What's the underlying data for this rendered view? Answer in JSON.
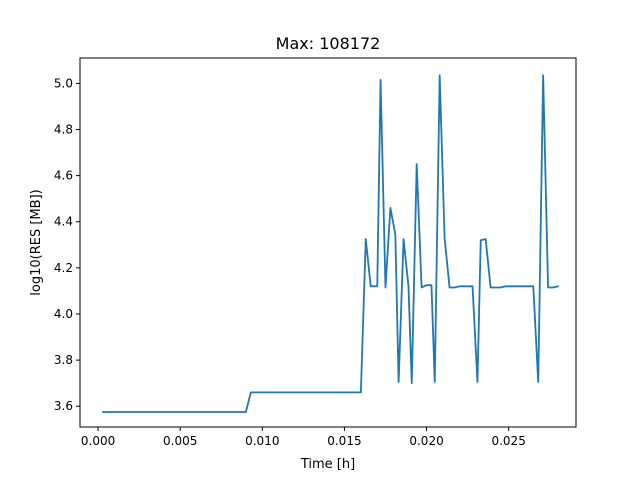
{
  "chart_data": {
    "type": "line",
    "title": "Max: 108172",
    "xlabel": "Time [h]",
    "ylabel": "log10(RES [MB])",
    "xlim": [
      -0.0011,
      0.0291
    ],
    "ylim": [
      3.51,
      5.11
    ],
    "x_ticks": [
      0.0,
      0.005,
      0.01,
      0.015,
      0.02,
      0.025
    ],
    "x_tick_labels": [
      "0.000",
      "0.005",
      "0.010",
      "0.015",
      "0.020",
      "0.025"
    ],
    "y_ticks": [
      3.6,
      3.8,
      4.0,
      4.2,
      4.4,
      4.6,
      4.8,
      5.0
    ],
    "y_tick_labels": [
      "3.6",
      "3.8",
      "4.0",
      "4.2",
      "4.4",
      "4.6",
      "4.8",
      "5.0"
    ],
    "grid": false,
    "legend": "none",
    "series": [
      {
        "color": "#1f77b4",
        "x": [
          0.0003,
          0.009,
          0.0093,
          0.012,
          0.016,
          0.0163,
          0.0166,
          0.017,
          0.0172,
          0.0175,
          0.0178,
          0.0181,
          0.0183,
          0.0186,
          0.0189,
          0.0191,
          0.0194,
          0.0197,
          0.02,
          0.0203,
          0.0205,
          0.0208,
          0.0211,
          0.0214,
          0.0217,
          0.022,
          0.0222,
          0.0225,
          0.0228,
          0.0231,
          0.0233,
          0.0236,
          0.0239,
          0.0242,
          0.0245,
          0.0248,
          0.025,
          0.0253,
          0.0256,
          0.0259,
          0.0262,
          0.0265,
          0.0268,
          0.0271,
          0.0274,
          0.0277,
          0.028
        ],
        "y": [
          3.575,
          3.575,
          3.66,
          3.66,
          3.66,
          4.325,
          4.12,
          4.12,
          5.015,
          4.115,
          4.46,
          4.345,
          3.705,
          4.325,
          4.12,
          3.7,
          4.65,
          4.115,
          4.125,
          4.125,
          3.705,
          5.035,
          4.33,
          4.115,
          4.115,
          4.12,
          4.12,
          4.12,
          4.12,
          3.705,
          4.32,
          4.325,
          4.115,
          4.115,
          4.115,
          4.12,
          4.12,
          4.12,
          4.12,
          4.12,
          4.12,
          4.12,
          3.705,
          5.035,
          4.115,
          4.115,
          4.12
        ]
      }
    ]
  }
}
